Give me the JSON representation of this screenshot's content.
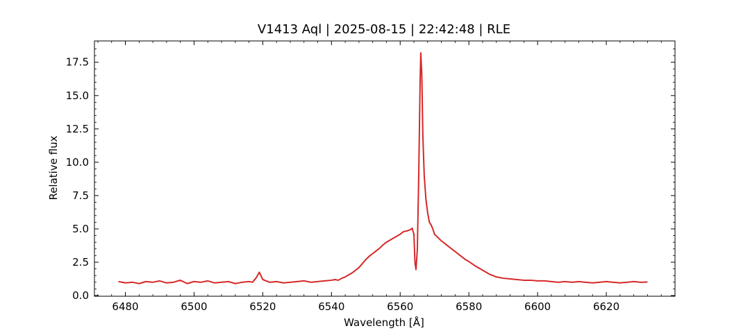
{
  "chart_data": {
    "type": "line",
    "title": "V1413 Aql | 2025-08-15 | 22:42:48 | RLE",
    "xlabel": "Wavelength [Å]",
    "ylabel": "Relative flux",
    "xlim": [
      6471,
      6640
    ],
    "ylim": [
      -0.05,
      19.1
    ],
    "x_ticks": [
      6480,
      6500,
      6520,
      6540,
      6560,
      6580,
      6600,
      6620
    ],
    "x_tick_labels": [
      "6480",
      "6500",
      "6520",
      "6540",
      "6560",
      "6580",
      "6600",
      "6620"
    ],
    "y_ticks": [
      0.0,
      2.5,
      5.0,
      7.5,
      10.0,
      12.5,
      15.0,
      17.5
    ],
    "y_tick_labels": [
      "0.0",
      "2.5",
      "5.0",
      "7.5",
      "10.0",
      "12.5",
      "15.0",
      "17.5"
    ],
    "grid": false,
    "legend": "none",
    "line_color": "#d62728",
    "series": [
      {
        "x": [
          6478,
          6480,
          6482,
          6484,
          6486,
          6488,
          6490,
          6492,
          6494,
          6496,
          6498,
          6500,
          6502,
          6504,
          6506,
          6508,
          6510,
          6512,
          6514,
          6516,
          6517,
          6518,
          6519,
          6520,
          6521,
          6522,
          6524,
          6526,
          6528,
          6530,
          6532,
          6534,
          6536,
          6538,
          6540,
          6541,
          6542,
          6543,
          6544,
          6545,
          6546,
          6547,
          6548,
          6549,
          6550,
          6551,
          6552,
          6553,
          6554,
          6555,
          6556,
          6557,
          6558,
          6559,
          6560,
          6561,
          6562,
          6562.5,
          6563,
          6563.5,
          6564,
          6564.3,
          6564.6,
          6565,
          6565.4,
          6565.8,
          6566,
          6566.3,
          6566.6,
          6567,
          6567.5,
          6568,
          6568.5,
          6569,
          6569.5,
          6570,
          6571,
          6572,
          6573,
          6574,
          6575,
          6576,
          6577,
          6578,
          6579,
          6580,
          6582,
          6584,
          6586,
          6588,
          6590,
          6592,
          6594,
          6596,
          6598,
          6600,
          6602,
          6604,
          6606,
          6608,
          6610,
          6612,
          6614,
          6616,
          6618,
          6620,
          6622,
          6624,
          6626,
          6628,
          6630,
          6632
        ],
        "y": [
          1.05,
          0.95,
          1.0,
          0.9,
          1.05,
          1.0,
          1.1,
          0.95,
          1.0,
          1.15,
          0.9,
          1.05,
          1.0,
          1.1,
          0.95,
          1.0,
          1.05,
          0.9,
          1.0,
          1.05,
          1.0,
          1.3,
          1.75,
          1.2,
          1.1,
          1.0,
          1.05,
          0.95,
          1.0,
          1.05,
          1.1,
          1.0,
          1.05,
          1.1,
          1.15,
          1.2,
          1.15,
          1.3,
          1.4,
          1.55,
          1.7,
          1.9,
          2.1,
          2.4,
          2.7,
          2.95,
          3.15,
          3.35,
          3.55,
          3.8,
          4.0,
          4.15,
          4.3,
          4.45,
          4.6,
          4.8,
          4.85,
          4.9,
          4.95,
          5.05,
          4.6,
          2.5,
          1.95,
          3.5,
          9.0,
          16.0,
          18.2,
          16.5,
          12.0,
          9.0,
          7.2,
          6.2,
          5.5,
          5.3,
          5.0,
          4.6,
          4.35,
          4.1,
          3.9,
          3.7,
          3.5,
          3.3,
          3.1,
          2.9,
          2.7,
          2.55,
          2.2,
          1.9,
          1.6,
          1.4,
          1.3,
          1.25,
          1.2,
          1.15,
          1.15,
          1.1,
          1.1,
          1.05,
          1.0,
          1.05,
          1.0,
          1.05,
          1.0,
          0.95,
          1.0,
          1.05,
          1.0,
          0.95,
          1.0,
          1.05,
          1.0,
          1.02
        ]
      }
    ]
  }
}
